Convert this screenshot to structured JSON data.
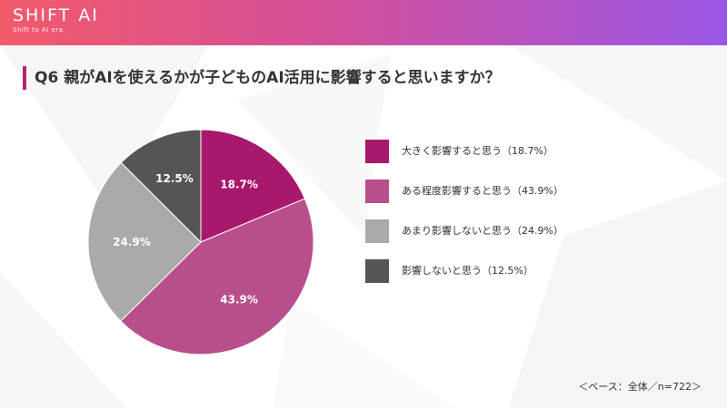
{
  "header": {
    "logo_text": "SHIFT AI",
    "logo_tagline": "Shift to AI era."
  },
  "page_title": "Q6  親がAIを使えるかが子どものAI活用に影響すると思いますか？",
  "footnote": "＜ベース：全体／n=722＞",
  "colors": {
    "header_start": "#f25a6a",
    "header_end": "#9a57e6",
    "accent": "#b0236f"
  },
  "chart_data": {
    "type": "pie",
    "title": "",
    "start_angle_deg": 0,
    "direction": "clockwise",
    "legend_position": "right",
    "slices": [
      {
        "label": "大きく影響すると思う（18.7%）",
        "value": 18.7,
        "data_label": "18.7%",
        "color": "#a8196d"
      },
      {
        "label": "ある程度影響すると思う（43.9%）",
        "value": 43.9,
        "data_label": "43.9%",
        "color": "#b84f8c"
      },
      {
        "label": "あまり影響しないと思う（24.9%）",
        "value": 24.9,
        "data_label": "24.9%",
        "color": "#aaaaaa"
      },
      {
        "label": "影響しないと思う（12.5%）",
        "value": 12.5,
        "data_label": "12.5%",
        "color": "#555555"
      }
    ]
  }
}
